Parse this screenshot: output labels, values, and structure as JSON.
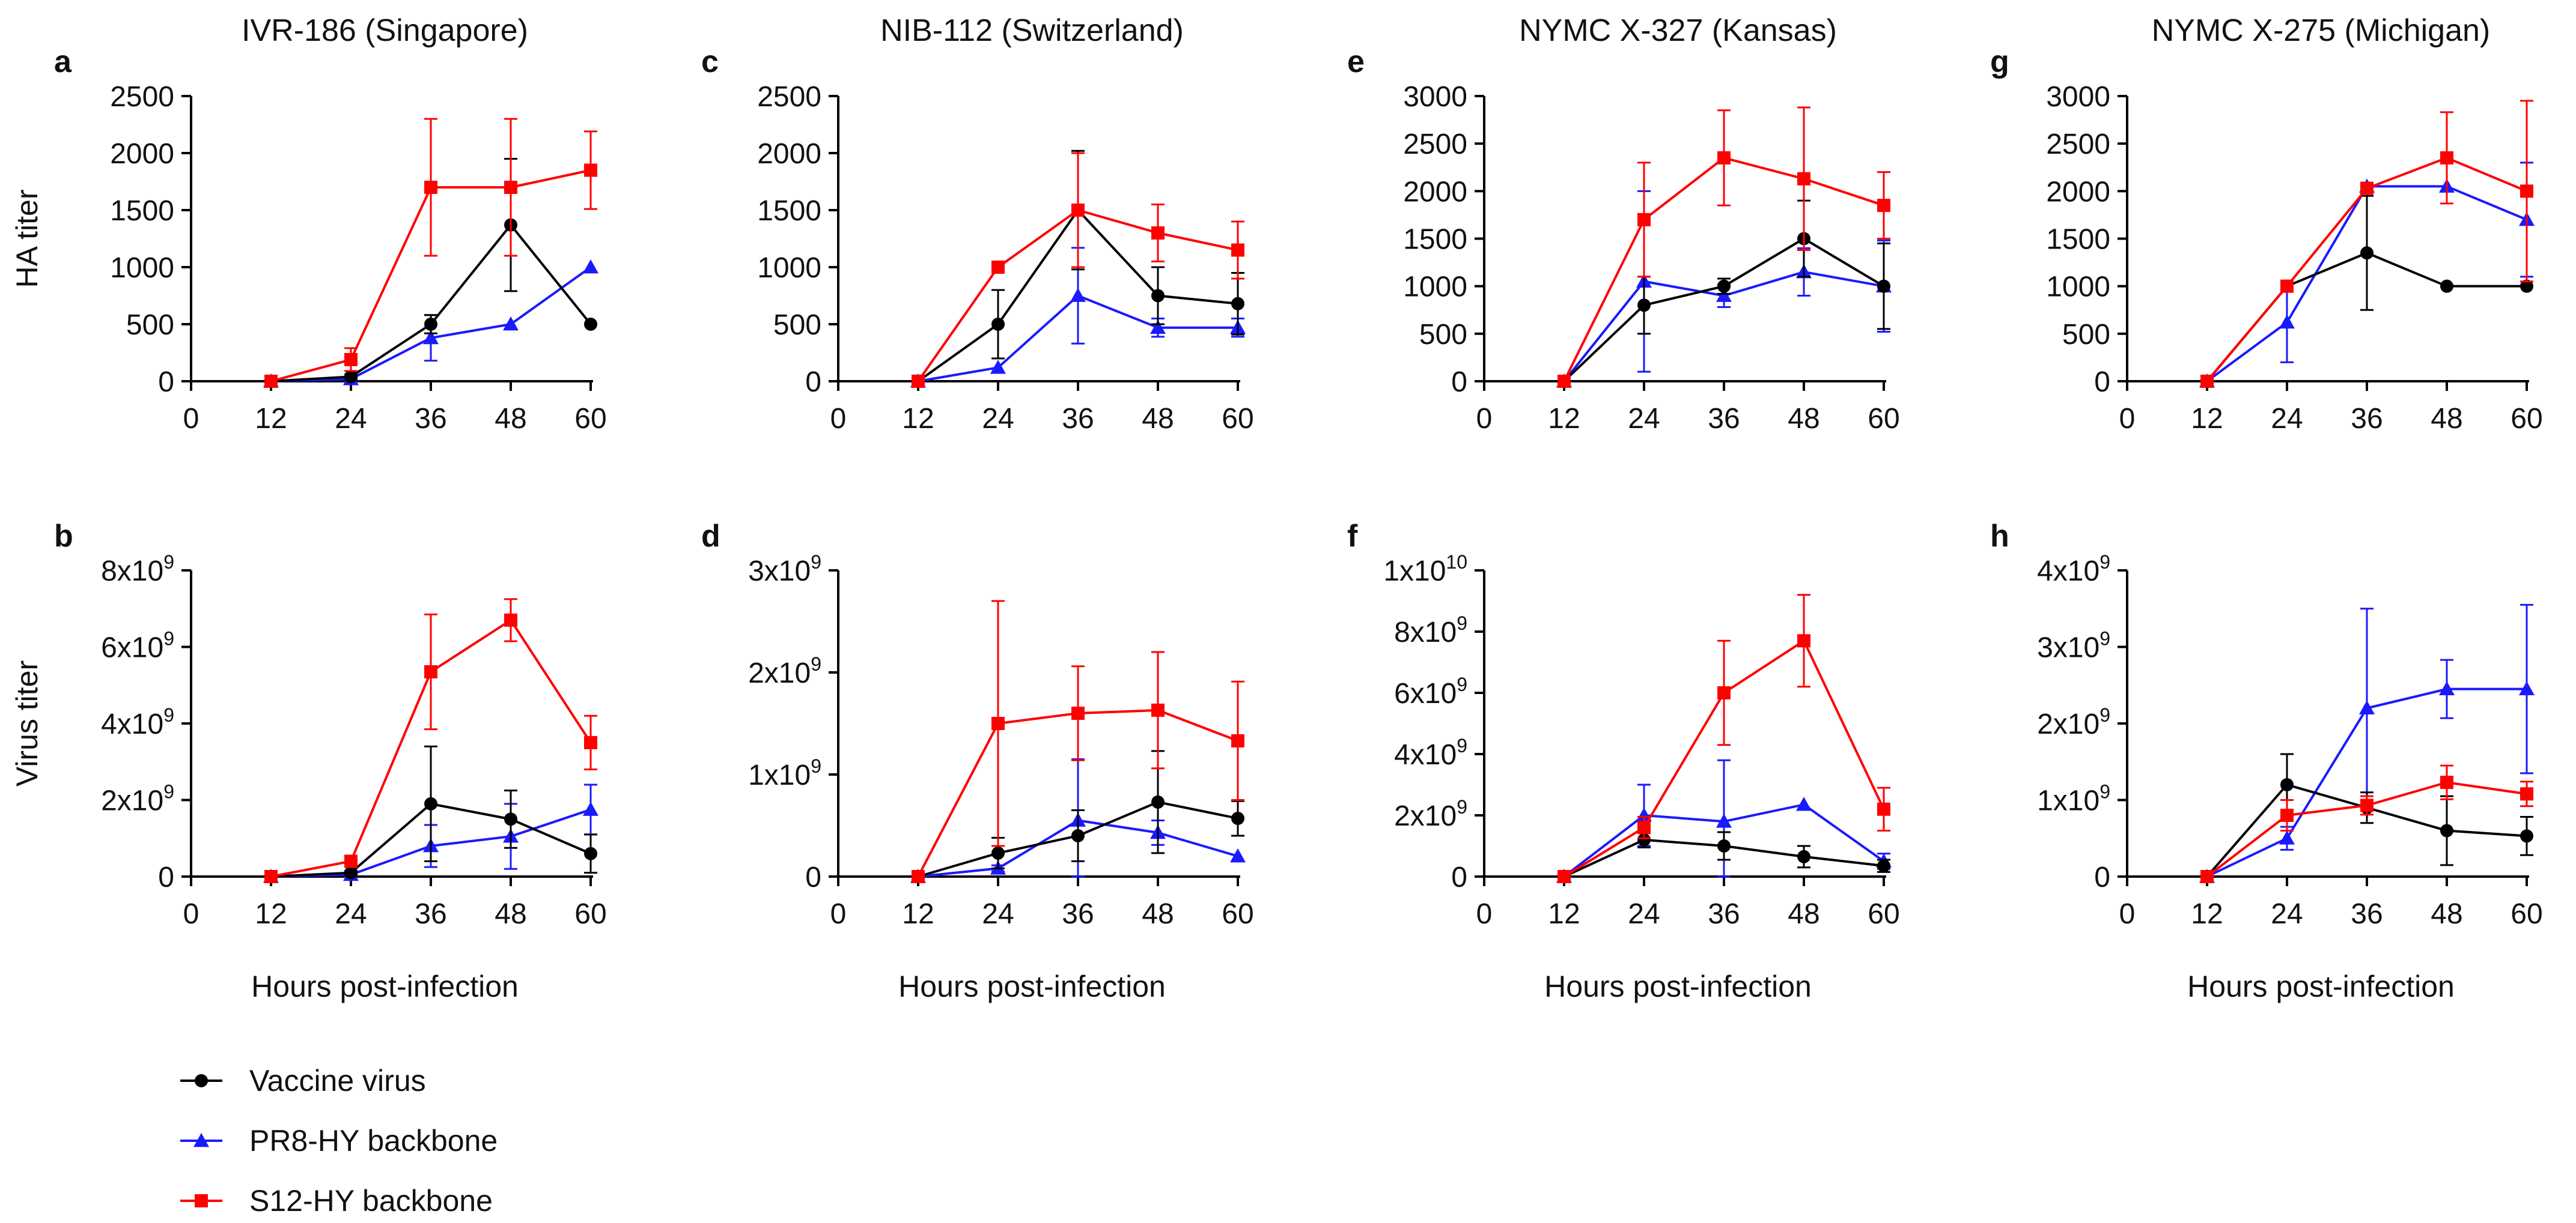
{
  "legend": [
    {
      "label": "Vaccine virus",
      "color": "#000000",
      "marker": "circle"
    },
    {
      "label": "PR8-HY backbone",
      "color": "#1a1aff",
      "marker": "triangle"
    },
    {
      "label": "S12-HY backbone",
      "color": "#ff0000",
      "marker": "square"
    }
  ],
  "chart_data": [
    {
      "panel": "a",
      "type": "line",
      "title": "IVR-186 (Singapore)",
      "ylabel": "HA titer",
      "xlabel": "",
      "x": [
        12,
        24,
        36,
        48,
        60
      ],
      "xlim": [
        0,
        60
      ],
      "ylim": [
        0,
        2500
      ],
      "yticks": [
        0,
        500,
        1000,
        1500,
        2000,
        2500
      ],
      "ytick_labels": [
        {
          "base": "0"
        },
        {
          "base": "500"
        },
        {
          "base": "1000"
        },
        {
          "base": "1500"
        },
        {
          "base": "2000"
        },
        {
          "base": "2500"
        }
      ],
      "series": [
        {
          "name": "Vaccine virus",
          "values": [
            0,
            40,
            500,
            1370,
            500
          ],
          "err": [
            0,
            20,
            80,
            580,
            0
          ]
        },
        {
          "name": "PR8-HY backbone",
          "values": [
            0,
            20,
            380,
            500,
            1000
          ],
          "err": [
            0,
            10,
            200,
            0,
            0
          ]
        },
        {
          "name": "S12-HY backbone",
          "values": [
            0,
            190,
            1700,
            1700,
            1850
          ],
          "err": [
            0,
            100,
            600,
            600,
            340
          ]
        }
      ]
    },
    {
      "panel": "c",
      "type": "line",
      "title": "NIB-112 (Switzerland)",
      "ylabel": "",
      "xlabel": "",
      "x": [
        12,
        24,
        36,
        48,
        60
      ],
      "xlim": [
        0,
        60
      ],
      "ylim": [
        0,
        2500
      ],
      "yticks": [
        0,
        500,
        1000,
        1500,
        2000,
        2500
      ],
      "ytick_labels": [
        {
          "base": "0"
        },
        {
          "base": "500"
        },
        {
          "base": "1000"
        },
        {
          "base": "1500"
        },
        {
          "base": "2000"
        },
        {
          "base": "2500"
        }
      ],
      "series": [
        {
          "name": "Vaccine virus",
          "values": [
            0,
            500,
            1500,
            750,
            680
          ],
          "err": [
            0,
            300,
            520,
            250,
            270
          ]
        },
        {
          "name": "PR8-HY backbone",
          "values": [
            0,
            120,
            750,
            470,
            470
          ],
          "err": [
            0,
            0,
            420,
            80,
            80
          ]
        },
        {
          "name": "S12-HY backbone",
          "values": [
            0,
            1000,
            1500,
            1300,
            1150
          ],
          "err": [
            0,
            0,
            500,
            250,
            250
          ]
        }
      ]
    },
    {
      "panel": "e",
      "type": "line",
      "title": "NYMC X-327 (Kansas)",
      "ylabel": "",
      "xlabel": "",
      "x": [
        12,
        24,
        36,
        48,
        60
      ],
      "xlim": [
        0,
        60
      ],
      "ylim": [
        0,
        3000
      ],
      "yticks": [
        0,
        500,
        1000,
        1500,
        2000,
        2500,
        3000
      ],
      "ytick_labels": [
        {
          "base": "0"
        },
        {
          "base": "500"
        },
        {
          "base": "1000"
        },
        {
          "base": "1500"
        },
        {
          "base": "2000"
        },
        {
          "base": "2500"
        },
        {
          "base": "3000"
        }
      ],
      "series": [
        {
          "name": "Vaccine virus",
          "values": [
            0,
            800,
            1000,
            1500,
            1000
          ],
          "err": [
            0,
            300,
            80,
            400,
            450
          ]
        },
        {
          "name": "PR8-HY backbone",
          "values": [
            0,
            1050,
            900,
            1150,
            1000
          ],
          "err": [
            0,
            950,
            120,
            250,
            480
          ]
        },
        {
          "name": "S12-HY backbone",
          "values": [
            0,
            1700,
            2350,
            2130,
            1850
          ],
          "err": [
            0,
            600,
            500,
            750,
            350
          ]
        }
      ]
    },
    {
      "panel": "g",
      "type": "line",
      "title": "NYMC X-275 (Michigan)",
      "ylabel": "",
      "xlabel": "",
      "x": [
        12,
        24,
        36,
        48,
        60
      ],
      "xlim": [
        0,
        60
      ],
      "ylim": [
        0,
        3000
      ],
      "yticks": [
        0,
        500,
        1000,
        1500,
        2000,
        2500,
        3000
      ],
      "ytick_labels": [
        {
          "base": "0"
        },
        {
          "base": "500"
        },
        {
          "base": "1000"
        },
        {
          "base": "1500"
        },
        {
          "base": "2000"
        },
        {
          "base": "2500"
        },
        {
          "base": "3000"
        }
      ],
      "series": [
        {
          "name": "Vaccine virus",
          "values": [
            0,
            1000,
            1350,
            1000,
            1000
          ],
          "err": [
            0,
            0,
            600,
            0,
            0
          ]
        },
        {
          "name": "PR8-HY backbone",
          "values": [
            0,
            620,
            2050,
            2050,
            1700
          ],
          "err": [
            0,
            420,
            0,
            0,
            600
          ]
        },
        {
          "name": "S12-HY backbone",
          "values": [
            0,
            1000,
            2030,
            2350,
            2000
          ],
          "err": [
            0,
            0,
            0,
            480,
            950
          ]
        }
      ]
    },
    {
      "panel": "b",
      "type": "line",
      "title": "",
      "ylabel": "Virus titer",
      "xlabel": "Hours post-infection",
      "x": [
        12,
        24,
        36,
        48,
        60
      ],
      "xlim": [
        0,
        60
      ],
      "ylim": [
        0,
        8000000000
      ],
      "yticks": [
        0,
        2000000000,
        4000000000,
        6000000000,
        8000000000
      ],
      "ytick_labels": [
        {
          "base": "0"
        },
        {
          "base": "2x10",
          "exp": "9"
        },
        {
          "base": "4x10",
          "exp": "9"
        },
        {
          "base": "6x10",
          "exp": "9"
        },
        {
          "base": "8x10",
          "exp": "9"
        }
      ],
      "series": [
        {
          "name": "Vaccine virus",
          "values": [
            0,
            100000000,
            1900000000,
            1500000000,
            600000000
          ],
          "err": [
            0,
            50000000,
            1500000000,
            750000000,
            500000000
          ]
        },
        {
          "name": "PR8-HY backbone",
          "values": [
            0,
            50000000,
            800000000,
            1050000000,
            1750000000
          ],
          "err": [
            0,
            30000000,
            550000000,
            850000000,
            650000000
          ]
        },
        {
          "name": "S12-HY backbone",
          "values": [
            0,
            400000000,
            5350000000,
            6700000000,
            3500000000
          ],
          "err": [
            0,
            150000000,
            1500000000,
            550000000,
            700000000
          ]
        }
      ]
    },
    {
      "panel": "d",
      "type": "line",
      "title": "",
      "ylabel": "",
      "xlabel": "Hours post-infection",
      "x": [
        12,
        24,
        36,
        48,
        60
      ],
      "xlim": [
        0,
        60
      ],
      "ylim": [
        0,
        3000000000
      ],
      "yticks": [
        0,
        1000000000,
        2000000000,
        3000000000
      ],
      "ytick_labels": [
        {
          "base": "0"
        },
        {
          "base": "1x10",
          "exp": "9"
        },
        {
          "base": "2x10",
          "exp": "9"
        },
        {
          "base": "3x10",
          "exp": "9"
        }
      ],
      "series": [
        {
          "name": "Vaccine virus",
          "values": [
            0,
            230000000,
            400000000,
            730000000,
            570000000
          ],
          "err": [
            0,
            150000000,
            250000000,
            500000000,
            170000000
          ]
        },
        {
          "name": "PR8-HY backbone",
          "values": [
            0,
            80000000,
            550000000,
            430000000,
            200000000
          ],
          "err": [
            0,
            30000000,
            600000000,
            120000000,
            0
          ]
        },
        {
          "name": "S12-HY backbone",
          "values": [
            0,
            1500000000,
            1600000000,
            1630000000,
            1330000000
          ],
          "err": [
            0,
            1200000000,
            460000000,
            570000000,
            580000000
          ]
        }
      ]
    },
    {
      "panel": "f",
      "type": "line",
      "title": "",
      "ylabel": "",
      "xlabel": "Hours post-infection",
      "x": [
        12,
        24,
        36,
        48,
        60
      ],
      "xlim": [
        0,
        60
      ],
      "ylim": [
        0,
        10000000000
      ],
      "yticks": [
        0,
        2000000000,
        4000000000,
        6000000000,
        8000000000,
        10000000000
      ],
      "ytick_labels": [
        {
          "base": "0"
        },
        {
          "base": "2x10",
          "exp": "9"
        },
        {
          "base": "4x10",
          "exp": "9"
        },
        {
          "base": "6x10",
          "exp": "9"
        },
        {
          "base": "8x10",
          "exp": "9"
        },
        {
          "base": "1x10",
          "exp": "10"
        }
      ],
      "series": [
        {
          "name": "Vaccine virus",
          "values": [
            0,
            1200000000,
            1000000000,
            650000000,
            350000000
          ],
          "err": [
            0,
            250000000,
            450000000,
            350000000,
            200000000
          ]
        },
        {
          "name": "PR8-HY backbone",
          "values": [
            0,
            2000000000,
            1800000000,
            2350000000,
            500000000
          ],
          "err": [
            0,
            1000000000,
            2000000000,
            0,
            250000000
          ]
        },
        {
          "name": "S12-HY backbone",
          "values": [
            0,
            1600000000,
            6000000000,
            7700000000,
            2200000000
          ],
          "err": [
            0,
            350000000,
            1700000000,
            1500000000,
            700000000
          ]
        }
      ]
    },
    {
      "panel": "h",
      "type": "line",
      "title": "",
      "ylabel": "",
      "xlabel": "Hours post-infection",
      "x": [
        12,
        24,
        36,
        48,
        60
      ],
      "xlim": [
        0,
        60
      ],
      "ylim": [
        0,
        4000000000
      ],
      "yticks": [
        0,
        1000000000,
        2000000000,
        3000000000,
        4000000000
      ],
      "ytick_labels": [
        {
          "base": "0"
        },
        {
          "base": "1x10",
          "exp": "9"
        },
        {
          "base": "2x10",
          "exp": "9"
        },
        {
          "base": "3x10",
          "exp": "9"
        },
        {
          "base": "4x10",
          "exp": "9"
        }
      ],
      "series": [
        {
          "name": "Vaccine virus",
          "values": [
            0,
            1200000000,
            900000000,
            600000000,
            530000000
          ],
          "err": [
            0,
            400000000,
            200000000,
            450000000,
            250000000
          ]
        },
        {
          "name": "PR8-HY backbone",
          "values": [
            0,
            500000000,
            2200000000,
            2450000000,
            2450000000
          ],
          "err": [
            0,
            150000000,
            1300000000,
            380000000,
            1100000000
          ]
        },
        {
          "name": "S12-HY backbone",
          "values": [
            0,
            800000000,
            930000000,
            1230000000,
            1080000000
          ],
          "err": [
            0,
            200000000,
            120000000,
            220000000,
            160000000
          ]
        }
      ]
    }
  ]
}
